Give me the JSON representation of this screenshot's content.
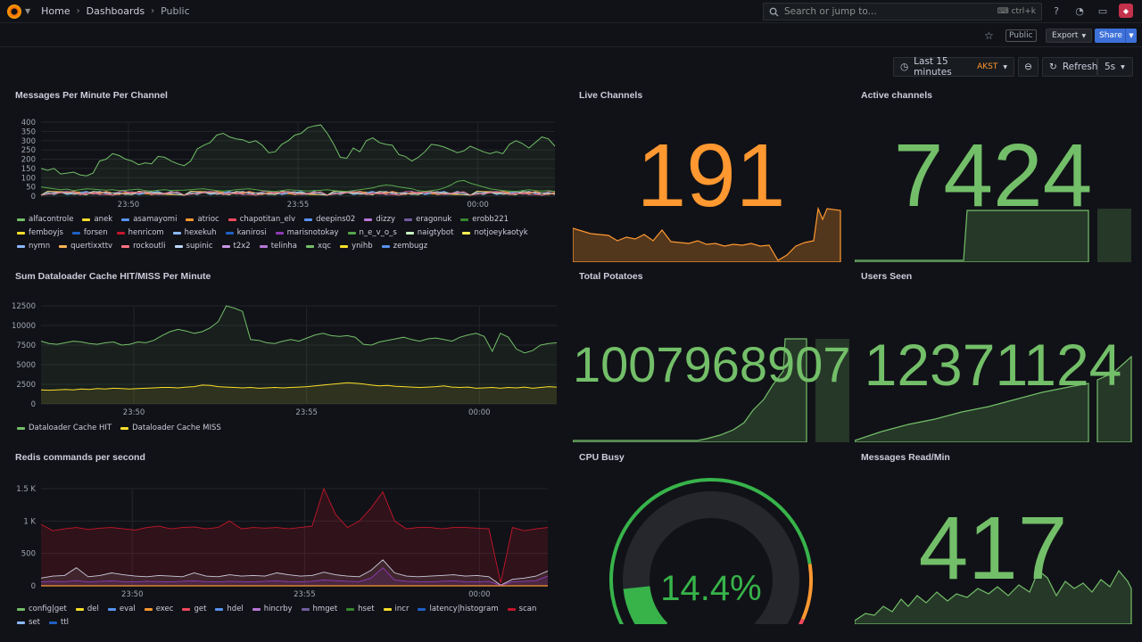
{
  "header": {
    "breadcrumb": [
      "Home",
      "Dashboards",
      "Public"
    ],
    "search_placeholder": "Search or jump to...",
    "search_shortcut": "ctrl+k",
    "public_tag": "Public",
    "export_label": "Export",
    "share_label": "Share",
    "icons": [
      "grafana-logo-icon",
      "help-icon",
      "rss-icon",
      "monitor-icon",
      "user-avatar-icon",
      "star-icon",
      "clock-icon",
      "zoom-out-icon",
      "refresh-icon"
    ]
  },
  "time_controls": {
    "range_label": "Last 15 minutes",
    "timezone": "AKST",
    "refresh_label": "Refresh",
    "refresh_interval": "5s"
  },
  "colors": {
    "green": "#73bf69",
    "orange": "#ff9830",
    "yellow": "#fade2a",
    "background": "#111217"
  },
  "panels": {
    "messages_per_minute": {
      "title": "Messages Per Minute Per Channel",
      "legend": [
        {
          "name": "alfacontrole",
          "color": "#73bf69"
        },
        {
          "name": "anek",
          "color": "#fade2a"
        },
        {
          "name": "asamayomi",
          "color": "#5794f2"
        },
        {
          "name": "atrioc",
          "color": "#ff9830"
        },
        {
          "name": "chapotitan_elv",
          "color": "#f2495c"
        },
        {
          "name": "deepins02",
          "color": "#5794f2"
        },
        {
          "name": "dizzy",
          "color": "#b877d9"
        },
        {
          "name": "eragonuk",
          "color": "#705da0"
        },
        {
          "name": "erobb221",
          "color": "#37872d"
        },
        {
          "name": "femboyjs",
          "color": "#fade2a"
        },
        {
          "name": "forsen",
          "color": "#1f60c4"
        },
        {
          "name": "henricom",
          "color": "#c4162a"
        },
        {
          "name": "hexekuh",
          "color": "#8ab8ff"
        },
        {
          "name": "kanirosi",
          "color": "#1f60c4"
        },
        {
          "name": "marisnotokay",
          "color": "#8f3bb8"
        },
        {
          "name": "n_e_v_o_s",
          "color": "#56a64b"
        },
        {
          "name": "naigtybot",
          "color": "#c8f2c2"
        },
        {
          "name": "notjoeykaotyk",
          "color": "#ffee52"
        },
        {
          "name": "nymn",
          "color": "#8ab8ff"
        },
        {
          "name": "quertixxttv",
          "color": "#ffb357"
        },
        {
          "name": "rockoutli",
          "color": "#ff7383"
        },
        {
          "name": "supinic",
          "color": "#c0d8ff"
        },
        {
          "name": "t2x2",
          "color": "#ca95e5"
        },
        {
          "name": "telinha",
          "color": "#b877d9"
        },
        {
          "name": "xqc",
          "color": "#73bf69"
        },
        {
          "name": "ynihb",
          "color": "#fade2a"
        },
        {
          "name": "zembugz",
          "color": "#5794f2"
        }
      ],
      "yticks": [
        "400",
        "350",
        "300",
        "250",
        "200",
        "150",
        "100",
        "50",
        "0"
      ],
      "xticks": [
        "23:50",
        "23:55",
        "00:00"
      ],
      "xc_series": [
        150,
        140,
        150,
        120,
        125,
        130,
        115,
        110,
        125,
        190,
        200,
        230,
        220,
        200,
        190,
        170,
        180,
        175,
        215,
        210,
        190,
        175,
        165,
        190,
        255,
        275,
        290,
        330,
        340,
        320,
        310,
        305,
        290,
        300,
        275,
        235,
        240,
        280,
        300,
        330,
        340,
        370,
        380,
        385,
        340,
        280,
        210,
        205,
        260,
        240,
        300,
        315,
        290,
        280,
        275,
        225,
        215,
        190,
        210,
        240,
        280,
        275,
        265,
        250,
        235,
        245,
        270,
        255,
        240,
        230,
        240,
        230,
        280,
        300,
        285,
        260,
        290,
        320,
        310,
        270
      ],
      "n_e_v_o_s_series": [
        50,
        45,
        40,
        35,
        38,
        30,
        35,
        40,
        38,
        35,
        33,
        35,
        30,
        32,
        35,
        38,
        30,
        28,
        32,
        35,
        30,
        32,
        33,
        35,
        38,
        40,
        35,
        30,
        28,
        30,
        35,
        38,
        40,
        35,
        30,
        28,
        25,
        30,
        35,
        33,
        30,
        28,
        30,
        32,
        35,
        30,
        28,
        25,
        30,
        35,
        40,
        45,
        55,
        60,
        58,
        50,
        45,
        40,
        30,
        25,
        30,
        35,
        45,
        60,
        80,
        85,
        70,
        60,
        50,
        40,
        35,
        30,
        28,
        25,
        30,
        35,
        30,
        28,
        30,
        25
      ]
    },
    "dataloader": {
      "title": "Sum Dataloader Cache HIT/MISS Per Minute",
      "yticks": [
        "12500",
        "10000",
        "7500",
        "5000",
        "2500",
        "0"
      ],
      "xticks": [
        "23:50",
        "23:55",
        "00:00"
      ],
      "legend": [
        {
          "name": "Dataloader Cache HIT",
          "color": "#73bf69"
        },
        {
          "name": "Dataloader Cache MISS",
          "color": "#fade2a"
        }
      ],
      "hit_series": [
        8000,
        7700,
        7600,
        7800,
        8000,
        7900,
        7700,
        7600,
        7800,
        7900,
        7500,
        7600,
        7900,
        7800,
        8100,
        8700,
        9200,
        9500,
        9300,
        9000,
        9200,
        9700,
        10500,
        12500,
        12200,
        11800,
        8200,
        8100,
        7800,
        7700,
        8000,
        8200,
        8000,
        8400,
        8800,
        9000,
        8700,
        8600,
        8700,
        8500,
        7600,
        7500,
        7900,
        8100,
        8300,
        8500,
        8200,
        8000,
        8300,
        8400,
        8200,
        8000,
        8500,
        8800,
        9000,
        8600,
        6700,
        9000,
        8500,
        7000,
        6500,
        6800,
        7500,
        7700,
        7800
      ],
      "miss_series": [
        1800,
        1750,
        1800,
        1850,
        1800,
        1900,
        1850,
        1950,
        1900,
        2000,
        1950,
        1900,
        1950,
        2000,
        2050,
        2100,
        2100,
        2050,
        2150,
        2200,
        2400,
        2350,
        2200,
        2150,
        2100,
        2050,
        2100,
        2000,
        2050,
        2100,
        2050,
        2100,
        2150,
        2200,
        2300,
        2400,
        2500,
        2600,
        2700,
        2650,
        2550,
        2400,
        2300,
        2350,
        2250,
        2200,
        2150,
        2100,
        2150,
        2200,
        2300,
        2150,
        2100,
        2150,
        2000,
        2050,
        2100,
        2000,
        2100,
        2050,
        2150,
        2000,
        2100,
        2200,
        2150
      ]
    },
    "redis": {
      "title": "Redis commands per second",
      "yticks": [
        "1.5 K",
        "1 K",
        "500",
        "0"
      ],
      "xticks": [
        "23:50",
        "23:55",
        "00:00"
      ],
      "legend": [
        {
          "name": "config|get",
          "color": "#73bf69"
        },
        {
          "name": "del",
          "color": "#fade2a"
        },
        {
          "name": "eval",
          "color": "#5794f2"
        },
        {
          "name": "exec",
          "color": "#ff9830"
        },
        {
          "name": "get",
          "color": "#f2495c"
        },
        {
          "name": "hdel",
          "color": "#5794f2"
        },
        {
          "name": "hincrby",
          "color": "#b877d9"
        },
        {
          "name": "hmget",
          "color": "#705da0"
        },
        {
          "name": "hset",
          "color": "#37872d"
        },
        {
          "name": "incr",
          "color": "#fade2a"
        },
        {
          "name": "latency|histogram",
          "color": "#1f60c4"
        },
        {
          "name": "scan",
          "color": "#c4162a"
        },
        {
          "name": "set",
          "color": "#8ab8ff"
        },
        {
          "name": "ttl",
          "color": "#1f60c4"
        }
      ],
      "top_series": [
        950,
        850,
        880,
        900,
        870,
        890,
        900,
        880,
        860,
        900,
        920,
        880,
        900,
        910,
        880,
        900,
        1000,
        880,
        900,
        890,
        900,
        880,
        900,
        920,
        1500,
        1100,
        900,
        1000,
        1200,
        1450,
        1000,
        880,
        900,
        900,
        880,
        900,
        900,
        890,
        880,
        50,
        900,
        850,
        880,
        900
      ],
      "mid_series": [
        120,
        150,
        160,
        280,
        140,
        160,
        200,
        170,
        150,
        140,
        160,
        150,
        140,
        200,
        150,
        140,
        170,
        150,
        160,
        150,
        200,
        170,
        150,
        160,
        210,
        170,
        150,
        140,
        240,
        400,
        200,
        150,
        140,
        150,
        160,
        170,
        150,
        160,
        140,
        10,
        100,
        120,
        150,
        230
      ],
      "low_series": [
        60,
        70,
        65,
        80,
        60,
        70,
        75,
        65,
        60,
        70,
        65,
        60,
        70,
        75,
        65,
        60,
        70,
        65,
        60,
        70,
        75,
        65,
        60,
        70,
        90,
        80,
        70,
        65,
        120,
        280,
        90,
        70,
        65,
        60,
        70,
        75,
        65,
        60,
        70,
        5,
        60,
        70,
        80,
        150
      ]
    },
    "live_channels": {
      "title": "Live Channels",
      "value": "191",
      "color": "#ff9830"
    },
    "active_channels": {
      "title": "Active channels",
      "value": "7424",
      "color": "#73bf69"
    },
    "total_potatoes": {
      "title": "Total Potatoes",
      "value": "1007968907",
      "color": "#73bf69"
    },
    "users_seen": {
      "title": "Users Seen",
      "value": "12371124",
      "color": "#73bf69"
    },
    "cpu_busy": {
      "title": "CPU Busy",
      "value": "14.4%",
      "fraction": 0.144
    },
    "messages_read": {
      "title": "Messages Read/Min",
      "value": "417",
      "color": "#73bf69"
    }
  }
}
